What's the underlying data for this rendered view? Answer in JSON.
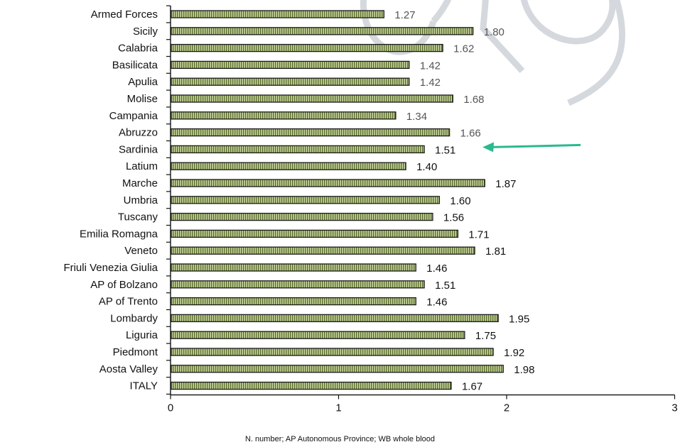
{
  "chart_data": {
    "type": "bar",
    "orientation": "horizontal",
    "categories": [
      "Armed Forces",
      "Sicily",
      "Calabria",
      "Basilicata",
      "Apulia",
      "Molise",
      "Campania",
      "Abruzzo",
      "Sardinia",
      "Latium",
      "Marche",
      "Umbria",
      "Tuscany",
      "Emilia Romagna",
      "Veneto",
      "Friuli Venezia Giulia",
      "AP of Bolzano",
      "AP of Trento",
      "Lombardy",
      "Liguria",
      "Piedmont",
      "Aosta Valley",
      "ITALY"
    ],
    "values": [
      1.27,
      1.8,
      1.62,
      1.42,
      1.42,
      1.68,
      1.34,
      1.66,
      1.51,
      1.4,
      1.87,
      1.6,
      1.56,
      1.71,
      1.81,
      1.46,
      1.51,
      1.46,
      1.95,
      1.75,
      1.92,
      1.98,
      1.67
    ],
    "value_labels": [
      "1.27",
      "1.80",
      "1.62",
      "1.42",
      "1.42",
      "1.68",
      "1.34",
      "1.66",
      "1.51",
      "1.40",
      "1.87",
      "1.60",
      "1.56",
      "1.71",
      "1.81",
      "1.46",
      "1.51",
      "1.46",
      "1.95",
      "1.75",
      "1.92",
      "1.98",
      "1.67"
    ],
    "xlim": [
      0,
      3
    ],
    "xticks": [
      0,
      1,
      2,
      3
    ],
    "grid": false,
    "bar_fill": "#b9c88f",
    "bar_stripe": "#5b6e2c",
    "bar_border": "#1a1a1a",
    "label_color": "#111111",
    "highlight_category": "Sardinia",
    "highlight_color": "#2bb98f"
  },
  "footnote": "N. number; AP Autonomous Province; WB whole blood"
}
